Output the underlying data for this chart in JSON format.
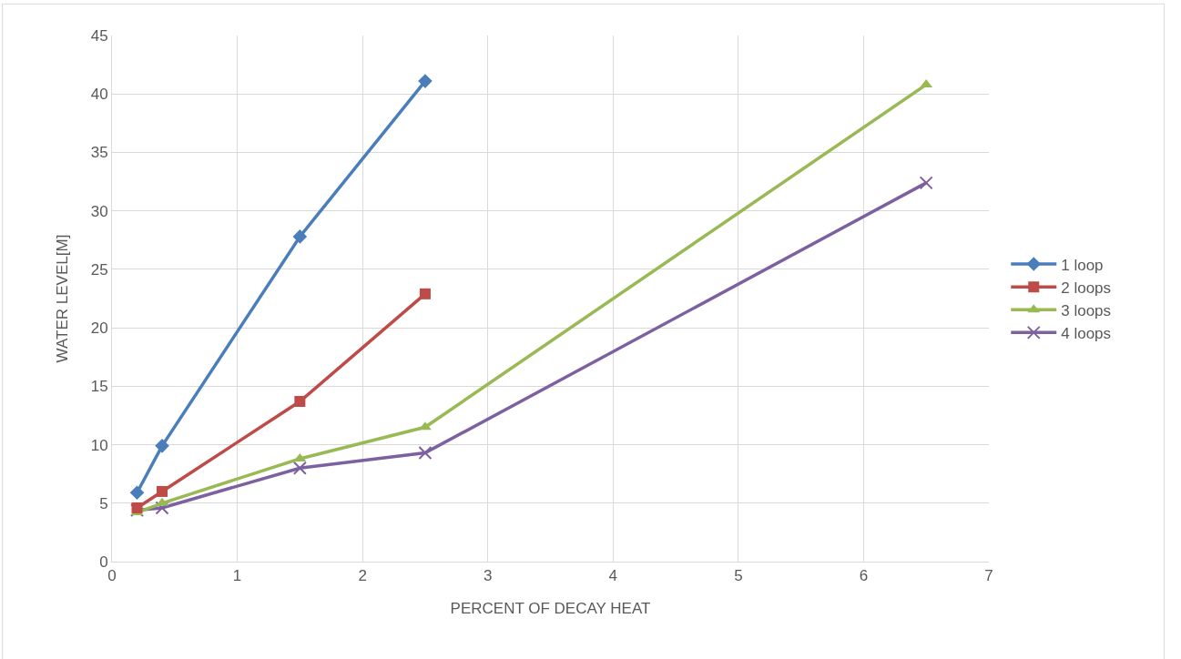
{
  "chart_data": {
    "type": "line",
    "xlabel": "PERCENT OF DECAY HEAT",
    "ylabel": "WATER LEVEL[M]",
    "xlim": [
      0,
      7
    ],
    "xticks": [
      0,
      1,
      2,
      3,
      4,
      5,
      6,
      7
    ],
    "ylim": [
      0,
      45
    ],
    "yticks": [
      0,
      5,
      10,
      15,
      20,
      25,
      30,
      35,
      40,
      45
    ],
    "grid": true,
    "legend": "right",
    "line_style": "solid",
    "series": [
      {
        "name": "1 loop",
        "color": "#4a7ebb",
        "marker": "diamond",
        "x": [
          0.2,
          0.4,
          1.5,
          2.5
        ],
        "values": [
          5.9,
          9.9,
          27.8,
          41.1
        ]
      },
      {
        "name": "2 loops",
        "color": "#be4b48",
        "marker": "square",
        "x": [
          0.2,
          0.4,
          1.5,
          2.5
        ],
        "values": [
          4.6,
          6.0,
          13.7,
          22.9
        ]
      },
      {
        "name": "3 loops",
        "color": "#98b954",
        "marker": "triangle",
        "x": [
          0.2,
          0.4,
          1.5,
          2.5,
          6.5
        ],
        "values": [
          4.2,
          5.0,
          8.8,
          11.5,
          40.8
        ]
      },
      {
        "name": "4 loops",
        "color": "#7d60a0",
        "marker": "cross",
        "x": [
          0.2,
          0.4,
          1.5,
          2.5,
          6.5
        ],
        "values": [
          4.4,
          4.6,
          8.0,
          9.3,
          32.4
        ]
      }
    ]
  }
}
